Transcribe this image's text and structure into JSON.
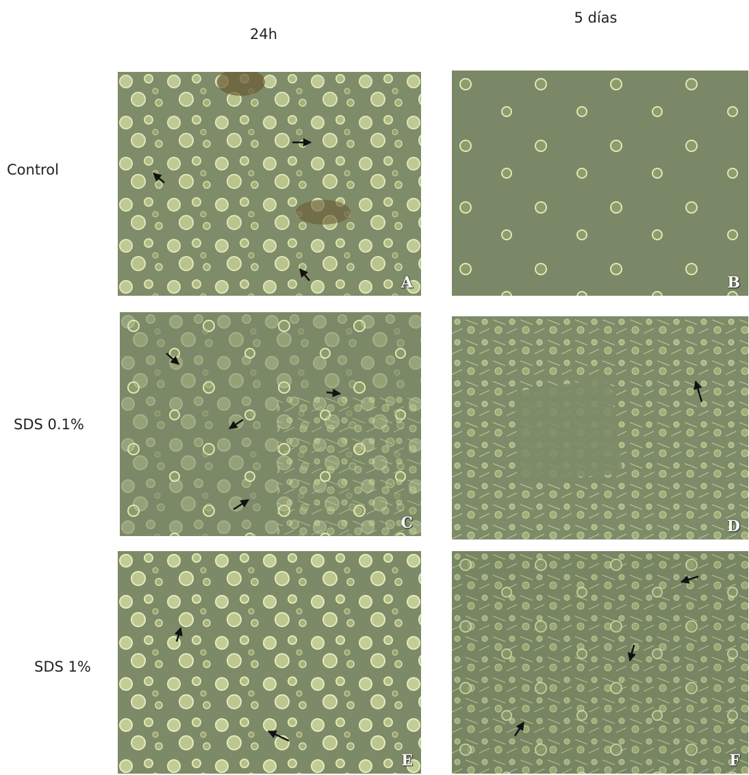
{
  "columns": [
    "24h",
    "5 días"
  ],
  "rows": [
    {
      "label": "Control",
      "panels": [
        "A",
        "B"
      ]
    },
    {
      "label": "SDS 0.1%",
      "panels": [
        "C",
        "D"
      ]
    },
    {
      "label": "SDS 1%",
      "panels": [
        "E",
        "F"
      ]
    }
  ]
}
